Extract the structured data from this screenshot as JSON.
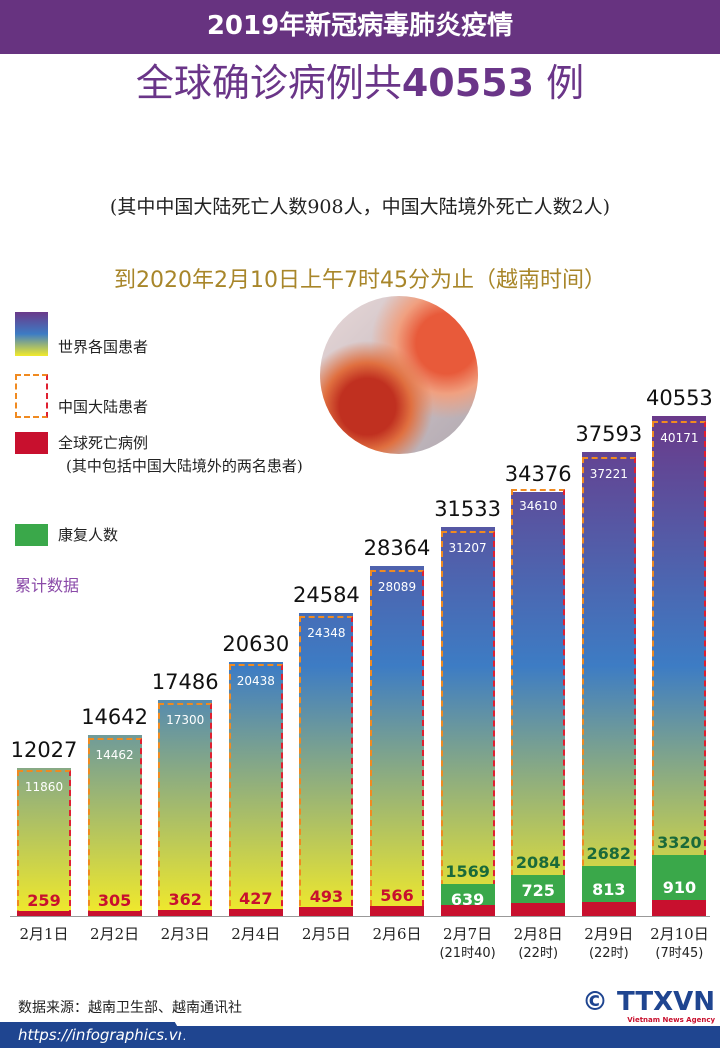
{
  "header": {
    "title": "2019年新冠病毒肺炎疫情",
    "headline_prefix": "全球确诊病例共",
    "headline_number": "40553",
    "headline_suffix": " 例",
    "note": "(其中中国大陆死亡人数908人，中国大陆境外死亡人数2人)",
    "asof": "到2020年2月10日上午7时45分为止（越南时间）"
  },
  "legend": {
    "world": "世界各国患者",
    "china": "中国大陆患者",
    "deaths": "全球死亡病例",
    "deaths_note": "(其中包括中国大陆境外的两名患者)",
    "recovered": "康复人数",
    "cumulative": "累计数据"
  },
  "colors": {
    "header": "#673380",
    "deaths": "#c8102e",
    "recovered": "#3aa84a",
    "china_border": "#f08a20",
    "gradient_top": "#6a3a8a",
    "gradient_mid": "#3d7cc4",
    "gradient_bottom": "#f2ea2a"
  },
  "chart_data": {
    "type": "bar",
    "categories": [
      "2月1日",
      "2月2日",
      "2月3日",
      "2月4日",
      "2月5日",
      "2月6日",
      "2月7日",
      "2月8日",
      "2月9日",
      "2月10日"
    ],
    "category_notes": [
      "",
      "",
      "",
      "",
      "",
      "",
      "(21时40)",
      "(22时)",
      "(22时)",
      "(7时45)"
    ],
    "series": [
      {
        "name": "世界各国患者",
        "values": [
          12027,
          14642,
          17486,
          20630,
          24584,
          28364,
          31533,
          34376,
          37593,
          40553
        ]
      },
      {
        "name": "中国大陆患者",
        "values": [
          11860,
          14462,
          17300,
          20438,
          24348,
          28089,
          31207,
          34610,
          37221,
          40171
        ]
      },
      {
        "name": "全球死亡病例",
        "values": [
          259,
          305,
          362,
          427,
          493,
          566,
          639,
          725,
          813,
          910
        ]
      },
      {
        "name": "康复人数",
        "values": [
          null,
          null,
          null,
          null,
          null,
          null,
          1569,
          2084,
          2682,
          3320
        ]
      }
    ]
  },
  "footer": {
    "source": "数据来源：越南卫生部、越南通讯社",
    "url": "https://infographics.vn",
    "logo": "© TTXVN",
    "logo_sub": "Vietnam News Agency"
  }
}
